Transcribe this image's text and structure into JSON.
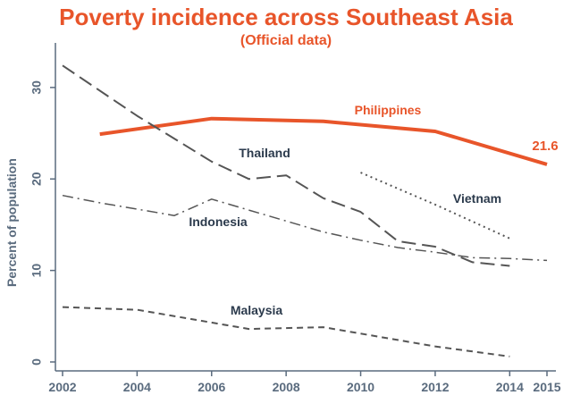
{
  "colors": {
    "accent": "#e8552a",
    "axis": "#5a6b7e",
    "series_gray": "#555555",
    "label_dark": "#2b3a4c"
  },
  "chart_data": {
    "type": "line",
    "title": "Poverty incidence across Southeast Asia",
    "subtitle": "(Official data)",
    "xlabel": "",
    "ylabel": "Percent of population",
    "xlim": [
      2002,
      2015
    ],
    "ylim": [
      0,
      33
    ],
    "x_ticks": [
      "2002",
      "2004",
      "2006",
      "2008",
      "2010",
      "2012",
      "2014",
      "2015"
    ],
    "y_ticks": [
      "0",
      "10",
      "20",
      "30"
    ],
    "grid": false,
    "legend": "none",
    "series": [
      {
        "name": "Philippines",
        "style": "solid",
        "x": [
          2003,
          2006,
          2009,
          2012,
          2015
        ],
        "y": [
          24.9,
          26.6,
          26.3,
          25.2,
          21.6
        ],
        "end_label": "21.6"
      },
      {
        "name": "Thailand",
        "style": "longdash",
        "x": [
          2002,
          2004,
          2006,
          2007,
          2008,
          2009,
          2010,
          2011,
          2012,
          2013,
          2014
        ],
        "y": [
          32.4,
          26.9,
          21.9,
          20.0,
          20.4,
          17.9,
          16.4,
          13.2,
          12.6,
          10.9,
          10.5
        ]
      },
      {
        "name": "Vietnam",
        "style": "dot",
        "x": [
          2010,
          2012,
          2014
        ],
        "y": [
          20.7,
          17.2,
          13.5
        ]
      },
      {
        "name": "Indonesia",
        "style": "dashdot",
        "x": [
          2002,
          2003,
          2004,
          2005,
          2006,
          2007,
          2008,
          2009,
          2010,
          2011,
          2012,
          2013,
          2014,
          2015
        ],
        "y": [
          18.2,
          17.4,
          16.7,
          16.0,
          17.8,
          16.6,
          15.4,
          14.2,
          13.3,
          12.5,
          12.0,
          11.4,
          11.3,
          11.1
        ]
      },
      {
        "name": "Malaysia",
        "style": "shortdash",
        "x": [
          2002,
          2004,
          2007,
          2009,
          2012,
          2014
        ],
        "y": [
          6.0,
          5.7,
          3.6,
          3.8,
          1.7,
          0.6
        ]
      }
    ]
  }
}
